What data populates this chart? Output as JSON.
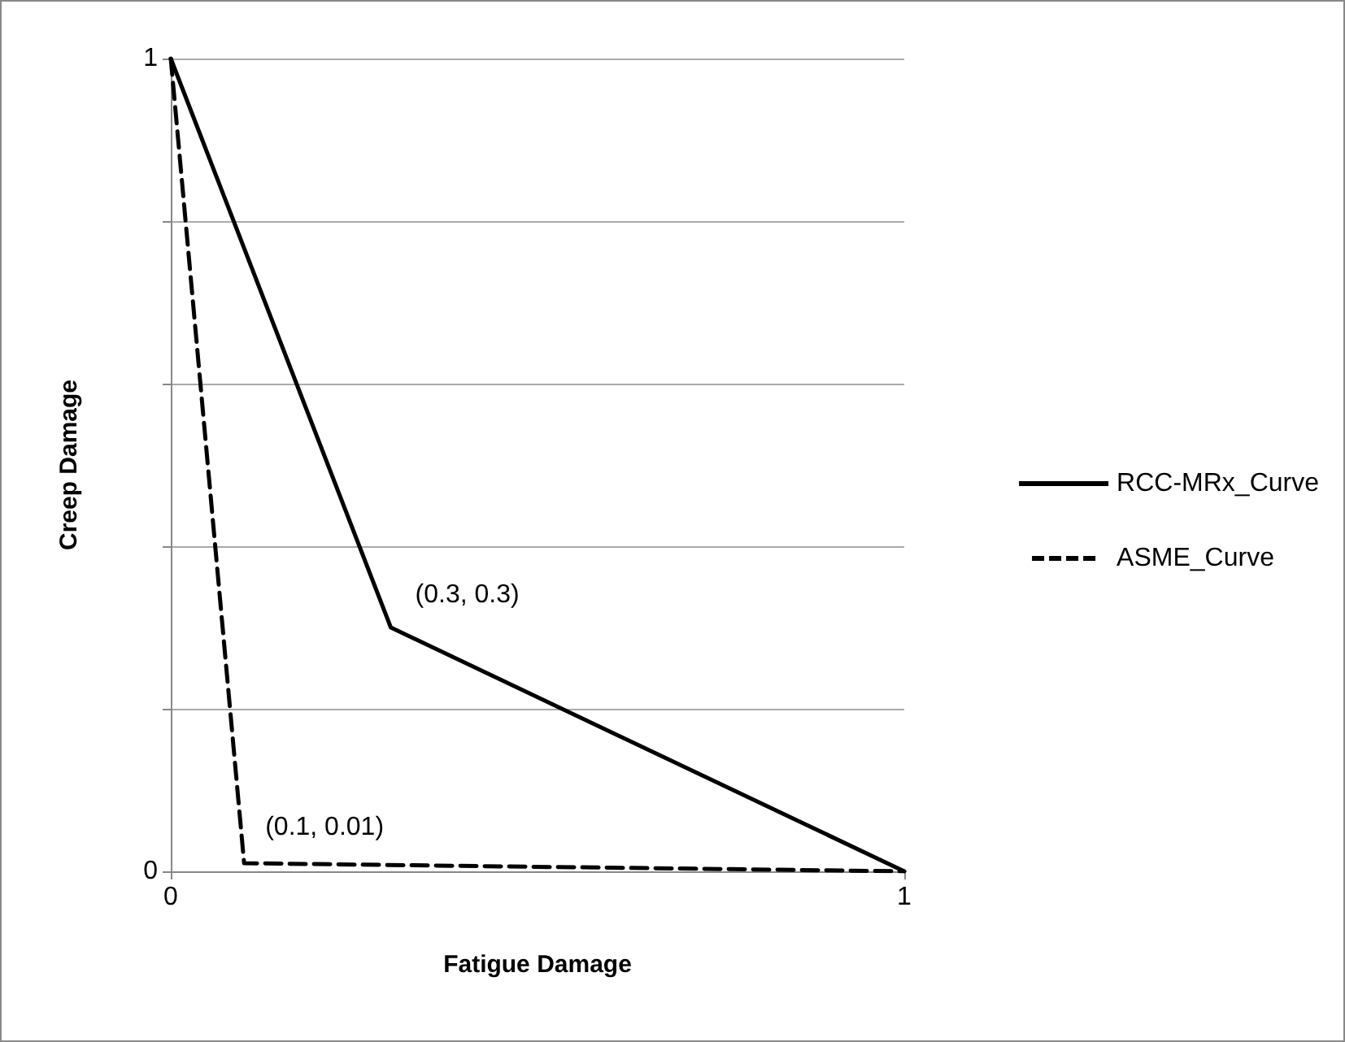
{
  "chart_data": {
    "type": "line",
    "xlabel": "Fatigue Damage",
    "ylabel": "Creep Damage",
    "series": [
      {
        "name": "RCC-MRx_Curve",
        "color": "#000000",
        "line_style": "solid",
        "x": [
          0,
          0.3,
          1
        ],
        "values": [
          1,
          0.3,
          0
        ]
      },
      {
        "name": "ASME_Curve",
        "color": "#000000",
        "line_style": "dashed",
        "x": [
          0,
          0.1,
          1
        ],
        "values": [
          1,
          0.01,
          0
        ]
      }
    ],
    "xlim": [
      0,
      1
    ],
    "xticks": [
      0,
      1
    ],
    "ylim": [
      0,
      1
    ],
    "yticks": [
      0,
      {
        "value": 0.2,
        "label": null
      },
      {
        "value": 0.4,
        "label": null
      },
      {
        "value": 0.6,
        "label": null
      },
      {
        "value": 0.8,
        "label": null
      },
      1
    ],
    "annotations": [
      {
        "text": "(0.3, 0.3)",
        "x": 0.3,
        "y": 0.3
      },
      {
        "text": "(0.1, 0.01)",
        "x": 0.1,
        "y": 0.01
      }
    ],
    "grid": "y",
    "legend": "right",
    "marker": "none"
  }
}
